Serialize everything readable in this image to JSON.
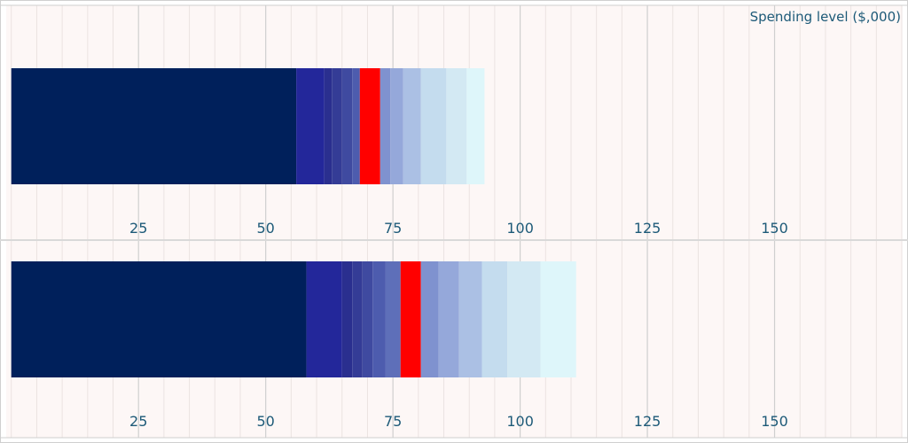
{
  "chart_data": {
    "type": "bar",
    "orientation": "horizontal-stacked",
    "axis_label": "Spending level ($,000)",
    "xlim": [
      -1,
      175
    ],
    "minor_tick_step": 5,
    "major_ticks": [
      25,
      50,
      75,
      100,
      125,
      150
    ],
    "tick_labels": [
      "25",
      "50",
      "75",
      "100",
      "125",
      "150"
    ],
    "grid": true,
    "marker_color": "#ff0000",
    "panels": [
      {
        "segments": [
          {
            "start": 0,
            "end": 56,
            "color": "#00205b"
          },
          {
            "start": 56,
            "end": 61.5,
            "color": "#23279a"
          },
          {
            "start": 61.5,
            "end": 63,
            "color": "#2a2f8f"
          },
          {
            "start": 63,
            "end": 65,
            "color": "#343c96"
          },
          {
            "start": 65,
            "end": 67,
            "color": "#3f4aa0"
          },
          {
            "start": 67,
            "end": 68.5,
            "color": "#4d5cae"
          },
          {
            "start": 68.5,
            "end": 72.5,
            "color": "#ff0000"
          },
          {
            "start": 72.5,
            "end": 74.5,
            "color": "#7f92cf"
          },
          {
            "start": 74.5,
            "end": 77,
            "color": "#95a8da"
          },
          {
            "start": 77,
            "end": 80.5,
            "color": "#abc0e4"
          },
          {
            "start": 80.5,
            "end": 85.5,
            "color": "#c4dcee"
          },
          {
            "start": 85.5,
            "end": 89.5,
            "color": "#d3e9f3"
          },
          {
            "start": 89.5,
            "end": 93,
            "color": "#def6fa"
          }
        ]
      },
      {
        "segments": [
          {
            "start": 0,
            "end": 58,
            "color": "#00205b"
          },
          {
            "start": 58,
            "end": 65,
            "color": "#23279a"
          },
          {
            "start": 65,
            "end": 67,
            "color": "#2a2f8f"
          },
          {
            "start": 67,
            "end": 69,
            "color": "#343c96"
          },
          {
            "start": 69,
            "end": 71,
            "color": "#3f4aa0"
          },
          {
            "start": 71,
            "end": 73.5,
            "color": "#4d5cae"
          },
          {
            "start": 73.5,
            "end": 76.5,
            "color": "#5e6fb9"
          },
          {
            "start": 76.5,
            "end": 80.5,
            "color": "#ff0000"
          },
          {
            "start": 80.5,
            "end": 84,
            "color": "#7f92cf"
          },
          {
            "start": 84,
            "end": 88,
            "color": "#95a8da"
          },
          {
            "start": 88,
            "end": 92.5,
            "color": "#abc0e4"
          },
          {
            "start": 92.5,
            "end": 97.5,
            "color": "#c4dcee"
          },
          {
            "start": 97.5,
            "end": 104,
            "color": "#d3e9f3"
          },
          {
            "start": 104,
            "end": 111,
            "color": "#def6fa"
          }
        ]
      }
    ]
  }
}
